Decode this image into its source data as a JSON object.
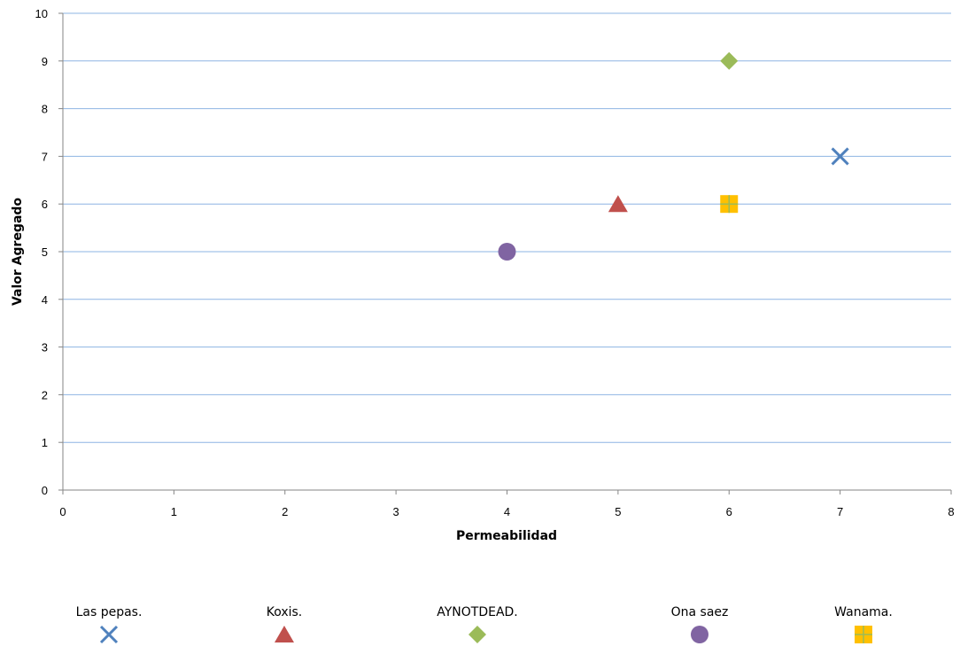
{
  "chart_data": {
    "type": "scatter",
    "title": "",
    "xlabel": "Permeabilidad",
    "ylabel": "Valor Agregado",
    "xlim": [
      0,
      8
    ],
    "ylim": [
      0,
      10
    ],
    "x_ticks": [
      "0",
      "1",
      "2",
      "3",
      "4",
      "5",
      "6",
      "7",
      "8"
    ],
    "y_ticks": [
      "0",
      "1",
      "2",
      "3",
      "4",
      "5",
      "6",
      "7",
      "8",
      "9",
      "10"
    ],
    "grid": "horizontal",
    "legend_position": "bottom",
    "series": [
      {
        "name": "Las pepas.",
        "marker": "x-icon",
        "color": "#4F81BD",
        "x": [
          7
        ],
        "y": [
          7
        ]
      },
      {
        "name": "Koxis.",
        "marker": "triangle-icon",
        "color": "#C0504D",
        "x": [
          5
        ],
        "y": [
          6
        ]
      },
      {
        "name": "AYNOTDEAD.",
        "marker": "diamond-icon",
        "color": "#9BBB59",
        "x": [
          6
        ],
        "y": [
          9
        ]
      },
      {
        "name": "Ona saez",
        "marker": "circle-icon",
        "color": "#8064A2",
        "x": [
          4
        ],
        "y": [
          5
        ]
      },
      {
        "name": "Wanama.",
        "marker": "square-plus-icon",
        "color": "#FFC000",
        "x": [
          6
        ],
        "y": [
          6
        ]
      }
    ]
  }
}
